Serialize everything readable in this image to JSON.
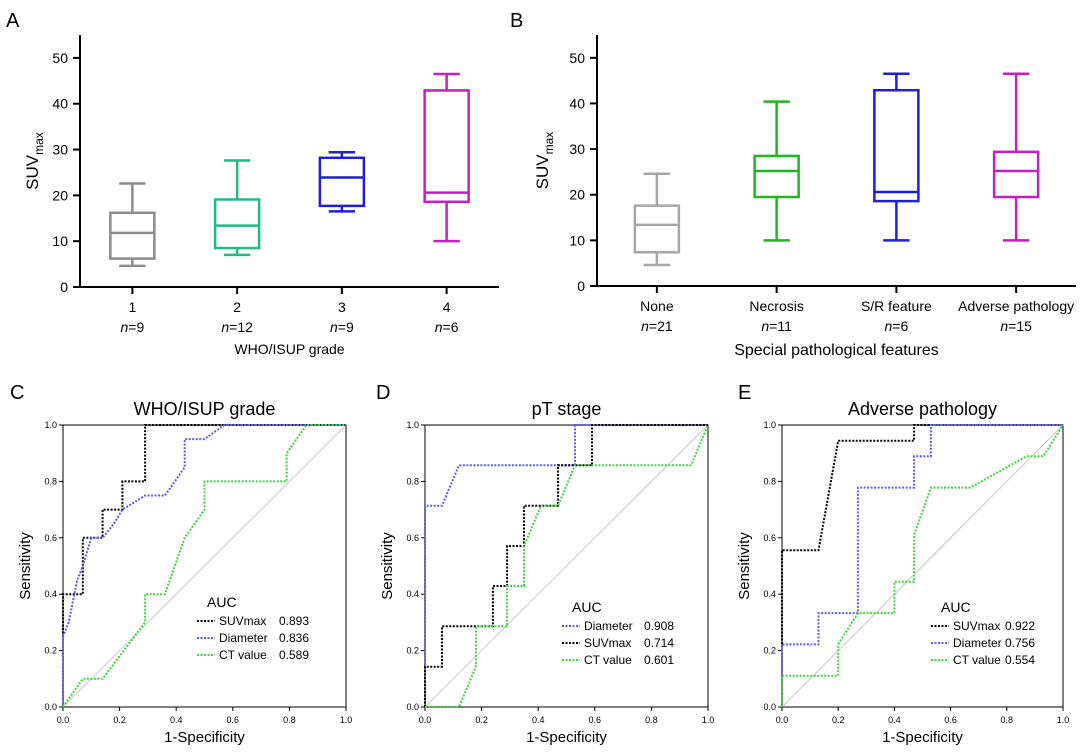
{
  "chart_data": [
    {
      "panel": "A",
      "type": "box",
      "ylabel_main": "SUV",
      "ylabel_sub": "max",
      "xlabel": "WHO/ISUP grade",
      "ylim": [
        0,
        55
      ],
      "yticks": [
        0,
        10,
        20,
        30,
        40,
        50
      ],
      "n_prefix": "n",
      "groups": [
        {
          "label": "1",
          "n_text": "=9",
          "color": "#8c8c8c",
          "min": 4.6,
          "q1": 6.2,
          "median": 11.8,
          "q3": 16.2,
          "max": 22.6
        },
        {
          "label": "2",
          "n_text": "=12",
          "color": "#1fba88",
          "min": 7.0,
          "q1": 8.5,
          "median": 13.4,
          "q3": 19.1,
          "max": 27.6
        },
        {
          "label": "3",
          "n_text": "=9",
          "color": "#1f1fd6",
          "min": 16.5,
          "q1": 17.7,
          "median": 23.9,
          "q3": 28.2,
          "max": 29.4
        },
        {
          "label": "4",
          "n_text": "=6",
          "color": "#c41fc4",
          "min": 10.0,
          "q1": 18.6,
          "median": 20.6,
          "q3": 42.9,
          "max": 46.5
        }
      ]
    },
    {
      "panel": "B",
      "type": "box",
      "ylabel_main": "SUV",
      "ylabel_sub": "max",
      "xlabel": "Special pathological features",
      "ylim": [
        0,
        55
      ],
      "yticks": [
        0,
        10,
        20,
        30,
        40,
        50
      ],
      "n_prefix": "n",
      "groups": [
        {
          "label": "None",
          "n_text": "=21",
          "color": "#a6a6a6",
          "min": 4.6,
          "q1": 7.4,
          "median": 13.4,
          "q3": 17.6,
          "max": 24.6
        },
        {
          "label": "Necrosis",
          "n_text": "=11",
          "color": "#1fb81f",
          "min": 10.0,
          "q1": 19.5,
          "median": 25.2,
          "q3": 28.5,
          "max": 40.4
        },
        {
          "label": "S/R feature",
          "n_text": "=6",
          "color": "#1f1fd6",
          "min": 10.0,
          "q1": 18.6,
          "median": 20.6,
          "q3": 42.9,
          "max": 46.5
        },
        {
          "label": "Adverse pathology",
          "n_text": "=15",
          "color": "#c41fc4",
          "min": 10.0,
          "q1": 19.5,
          "median": 25.2,
          "q3": 29.4,
          "max": 46.5
        }
      ]
    },
    {
      "panel": "C",
      "type": "roc",
      "title": "WHO/ISUP grade",
      "xlabel": "1-Specificity",
      "ylabel": "Sensitivity",
      "xticks": [
        "0.0",
        "0.2",
        "0.4",
        "0.6",
        "0.8",
        "1.0"
      ],
      "yticks": [
        "0.0",
        "0.2",
        "0.4",
        "0.6",
        "0.8",
        "1.0"
      ],
      "legend_title": "AUC",
      "series": [
        {
          "name": "SUVmax",
          "auc": "0.893",
          "color": "#000000",
          "points": [
            [
              0,
              0
            ],
            [
              0,
              0.4
            ],
            [
              0.07,
              0.4
            ],
            [
              0.07,
              0.6
            ],
            [
              0.14,
              0.6
            ],
            [
              0.14,
              0.7
            ],
            [
              0.21,
              0.7
            ],
            [
              0.21,
              0.8
            ],
            [
              0.29,
              0.8
            ],
            [
              0.29,
              1.0
            ],
            [
              1,
              1
            ]
          ]
        },
        {
          "name": "Diameter",
          "auc": "0.836",
          "color": "#5b5bf0",
          "points": [
            [
              0,
              0
            ],
            [
              0,
              0.25
            ],
            [
              0.02,
              0.3
            ],
            [
              0.05,
              0.45
            ],
            [
              0.07,
              0.5
            ],
            [
              0.1,
              0.6
            ],
            [
              0.14,
              0.6
            ],
            [
              0.18,
              0.65
            ],
            [
              0.21,
              0.7
            ],
            [
              0.29,
              0.75
            ],
            [
              0.36,
              0.75
            ],
            [
              0.43,
              0.85
            ],
            [
              0.43,
              0.95
            ],
            [
              0.5,
              0.95
            ],
            [
              0.57,
              1.0
            ],
            [
              1,
              1
            ]
          ]
        },
        {
          "name": "CT value",
          "auc": "0.589",
          "color": "#3dd63d",
          "points": [
            [
              0,
              0
            ],
            [
              0.07,
              0.1
            ],
            [
              0.14,
              0.1
            ],
            [
              0.29,
              0.3
            ],
            [
              0.29,
              0.4
            ],
            [
              0.36,
              0.4
            ],
            [
              0.43,
              0.6
            ],
            [
              0.5,
              0.7
            ],
            [
              0.5,
              0.8
            ],
            [
              0.79,
              0.8
            ],
            [
              0.79,
              0.9
            ],
            [
              0.86,
              1.0
            ],
            [
              1,
              1
            ]
          ]
        }
      ]
    },
    {
      "panel": "D",
      "type": "roc",
      "title": "pT stage",
      "xlabel": "1-Specificity",
      "ylabel": "Sensitivity",
      "xticks": [
        "0.0",
        "0.2",
        "0.4",
        "0.6",
        "0.8",
        "1.0"
      ],
      "yticks": [
        "0.0",
        "0.2",
        "0.4",
        "0.6",
        "0.8",
        "1.0"
      ],
      "legend_title": "AUC",
      "series": [
        {
          "name": "Diameter",
          "auc": "0.908",
          "color": "#5b5bf0",
          "points": [
            [
              0,
              0
            ],
            [
              0,
              0.714
            ],
            [
              0.06,
              0.714
            ],
            [
              0.12,
              0.857
            ],
            [
              0.53,
              0.857
            ],
            [
              0.53,
              1.0
            ],
            [
              1,
              1
            ]
          ]
        },
        {
          "name": "SUVmax",
          "auc": "0.714",
          "color": "#000000",
          "points": [
            [
              0,
              0
            ],
            [
              0,
              0.143
            ],
            [
              0.06,
              0.143
            ],
            [
              0.06,
              0.286
            ],
            [
              0.24,
              0.286
            ],
            [
              0.24,
              0.429
            ],
            [
              0.29,
              0.429
            ],
            [
              0.29,
              0.571
            ],
            [
              0.35,
              0.571
            ],
            [
              0.35,
              0.714
            ],
            [
              0.47,
              0.714
            ],
            [
              0.47,
              0.857
            ],
            [
              0.59,
              0.857
            ],
            [
              0.59,
              1.0
            ],
            [
              1,
              1
            ]
          ]
        },
        {
          "name": "CT value",
          "auc": "0.601",
          "color": "#3dd63d",
          "points": [
            [
              0,
              0
            ],
            [
              0.12,
              0
            ],
            [
              0.18,
              0.143
            ],
            [
              0.18,
              0.286
            ],
            [
              0.29,
              0.286
            ],
            [
              0.29,
              0.429
            ],
            [
              0.35,
              0.429
            ],
            [
              0.35,
              0.571
            ],
            [
              0.41,
              0.714
            ],
            [
              0.47,
              0.714
            ],
            [
              0.53,
              0.857
            ],
            [
              0.94,
              0.857
            ],
            [
              1,
              1
            ]
          ]
        }
      ]
    },
    {
      "panel": "E",
      "type": "roc",
      "title": "Adverse pathology",
      "xlabel": "1-Specificity",
      "ylabel": "Sensitivity",
      "xticks": [
        "0.0",
        "0.2",
        "0.4",
        "0.6",
        "0.8",
        "1.0"
      ],
      "yticks": [
        "0.0",
        "0.2",
        "0.4",
        "0.6",
        "0.8",
        "1.0"
      ],
      "legend_title": "AUC",
      "series": [
        {
          "name": "SUVmax",
          "auc": "0.922",
          "color": "#000000",
          "points": [
            [
              0,
              0
            ],
            [
              0,
              0.556
            ],
            [
              0.13,
              0.556
            ],
            [
              0.2,
              0.944
            ],
            [
              0.47,
              0.944
            ],
            [
              0.47,
              1.0
            ],
            [
              1,
              1
            ]
          ]
        },
        {
          "name": "Diameter",
          "auc": "0.756",
          "color": "#5b5bf0",
          "points": [
            [
              0,
              0
            ],
            [
              0,
              0.222
            ],
            [
              0.13,
              0.222
            ],
            [
              0.13,
              0.333
            ],
            [
              0.27,
              0.333
            ],
            [
              0.27,
              0.778
            ],
            [
              0.47,
              0.778
            ],
            [
              0.47,
              0.889
            ],
            [
              0.53,
              0.889
            ],
            [
              0.53,
              1.0
            ],
            [
              1,
              1
            ]
          ]
        },
        {
          "name": "CT value",
          "auc": "0.554",
          "color": "#3dd63d",
          "points": [
            [
              0,
              0
            ],
            [
              0,
              0.111
            ],
            [
              0.2,
              0.111
            ],
            [
              0.2,
              0.222
            ],
            [
              0.27,
              0.333
            ],
            [
              0.4,
              0.333
            ],
            [
              0.4,
              0.444
            ],
            [
              0.47,
              0.444
            ],
            [
              0.47,
              0.611
            ],
            [
              0.53,
              0.778
            ],
            [
              0.67,
              0.778
            ],
            [
              0.87,
              0.889
            ],
            [
              0.93,
              0.889
            ],
            [
              1,
              1
            ]
          ]
        }
      ]
    }
  ]
}
